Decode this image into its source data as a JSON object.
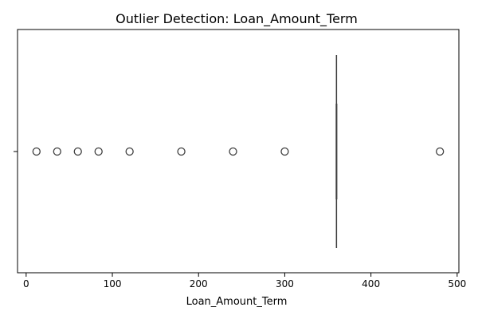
{
  "chart_data": {
    "type": "box",
    "title": "Outlier Detection: Loan_Amount_Term",
    "xlabel": "Loan_Amount_Term",
    "ylabel": "",
    "orientation": "horizontal",
    "xlim": [
      -10,
      502
    ],
    "xticks": [
      0,
      100,
      200,
      300,
      400,
      500
    ],
    "grid": false,
    "box": {
      "q1": 360,
      "median": 360,
      "q3": 360,
      "whisker_low": 360,
      "whisker_high": 360
    },
    "outliers": [
      12,
      36,
      60,
      84,
      120,
      180,
      240,
      300,
      480
    ],
    "colors": {
      "box": "#3f3f3f",
      "outlier_edge": "#3f3f3f"
    }
  }
}
